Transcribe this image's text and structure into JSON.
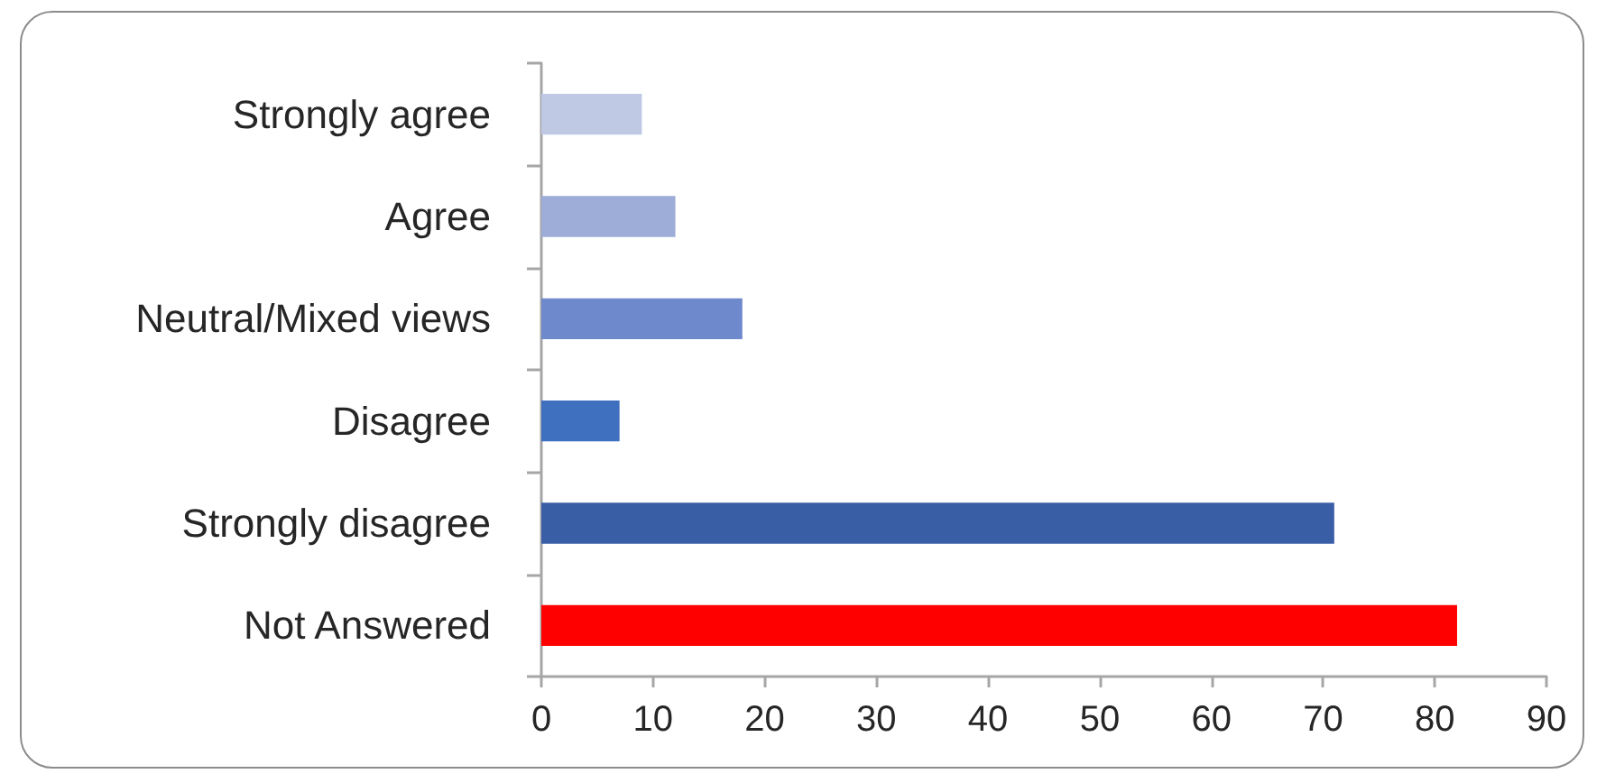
{
  "chart_data": {
    "type": "bar",
    "orientation": "horizontal",
    "categories": [
      "Strongly agree",
      "Agree",
      "Neutral/Mixed views",
      "Disagree",
      "Strongly disagree",
      "Not Answered"
    ],
    "values": [
      9,
      12,
      18,
      7,
      71,
      82
    ],
    "colors": [
      "#c0c9e4",
      "#9eadd8",
      "#6e89cc",
      "#3f6fbf",
      "#3a5ea6",
      "#ff0000"
    ],
    "xlim": [
      0,
      90
    ],
    "xticks": [
      0,
      10,
      20,
      30,
      40,
      50,
      60,
      70,
      80,
      90
    ]
  }
}
